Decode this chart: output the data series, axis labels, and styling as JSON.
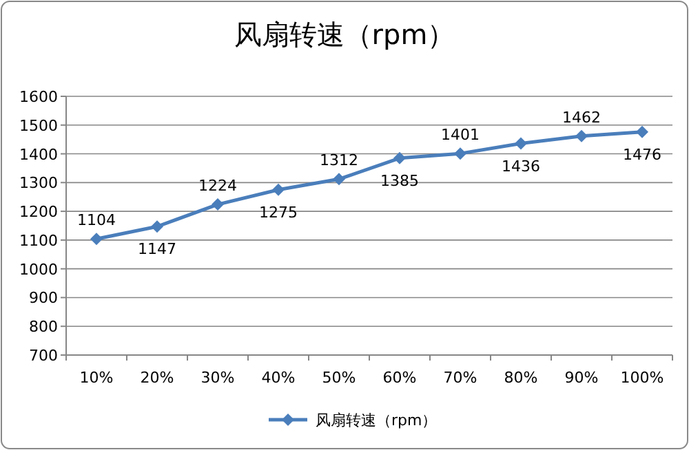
{
  "chart_data": {
    "type": "line",
    "title": "风扇转速（rpm）",
    "categories": [
      "10%",
      "20%",
      "30%",
      "40%",
      "50%",
      "60%",
      "70%",
      "80%",
      "90%",
      "100%"
    ],
    "series": [
      {
        "name": "风扇转速（rpm）",
        "color": "#4a7ebb",
        "values": [
          1104,
          1147,
          1224,
          1275,
          1312,
          1385,
          1401,
          1436,
          1462,
          1476
        ]
      }
    ],
    "ylim": [
      700,
      1600
    ],
    "yticks": [
      700,
      800,
      900,
      1000,
      1100,
      1200,
      1300,
      1400,
      1500,
      1600
    ],
    "grid": "y",
    "legend": "bottom",
    "marker": "diamond",
    "line_style": "solid",
    "data_labels": true
  }
}
